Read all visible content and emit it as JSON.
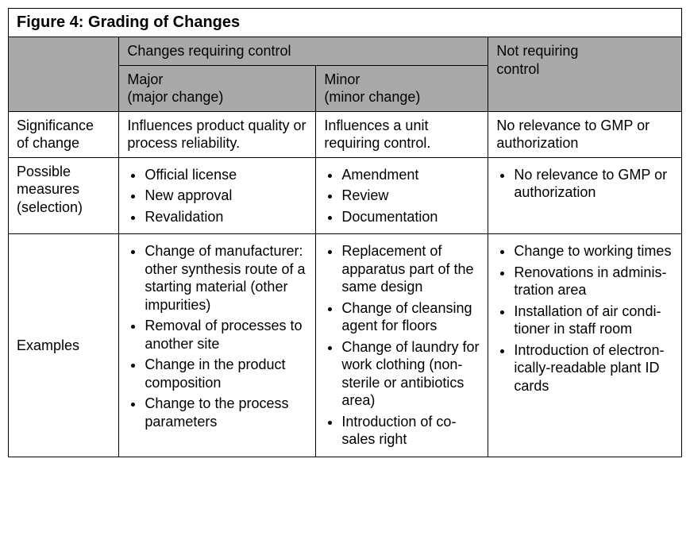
{
  "colors": {
    "header_bg": "#a9a9a9",
    "border": "#000000",
    "text": "#000000",
    "page_bg": "#ffffff"
  },
  "title": "Figure 4: Grading of Changes",
  "headers": {
    "group_requiring": "Changes requiring control",
    "major_line1": "Major",
    "major_line2": "(major change)",
    "minor_line1": "Minor",
    "minor_line2": "(minor change)",
    "not_line1": "Not requiring",
    "not_line2": "control"
  },
  "rowlabels": {
    "significance_line1": "Significance",
    "significance_line2": "of change",
    "measures_line1": "Possible",
    "measures_line2": "measures",
    "measures_line3": "(selection)",
    "examples": "Examples"
  },
  "significance": {
    "major": "Influences product quality or process reliability.",
    "minor": "Influences a unit requiring control.",
    "not": "No relevance to GMP or authorization"
  },
  "measures": {
    "major": [
      "Official license",
      "New approval",
      "Revalidation"
    ],
    "minor": [
      "Amendment",
      "Review",
      "Documentation"
    ],
    "not": [
      "No relevance to GMP or authorization"
    ]
  },
  "examples": {
    "major": [
      "Change of manufac­turer: other synthesis route of a starting ma­terial (other impurities)",
      "Removal of processes to another site",
      "Change in the product composition",
      "Change to the process parameters"
    ],
    "minor": [
      "Replacement of apparatus part of the same design",
      "Change of cleansing agent for floors",
      "Change of laun­dry for work clothing (non-sterile or antibiot­ics area)",
      "Introduction of co-sales right"
    ],
    "not": [
      "Change to working times",
      "Renovations in adminis­tration area",
      "Installation of air condi­tioner in staff room",
      "Introduction of electron­ically-readable plant ID cards"
    ]
  }
}
